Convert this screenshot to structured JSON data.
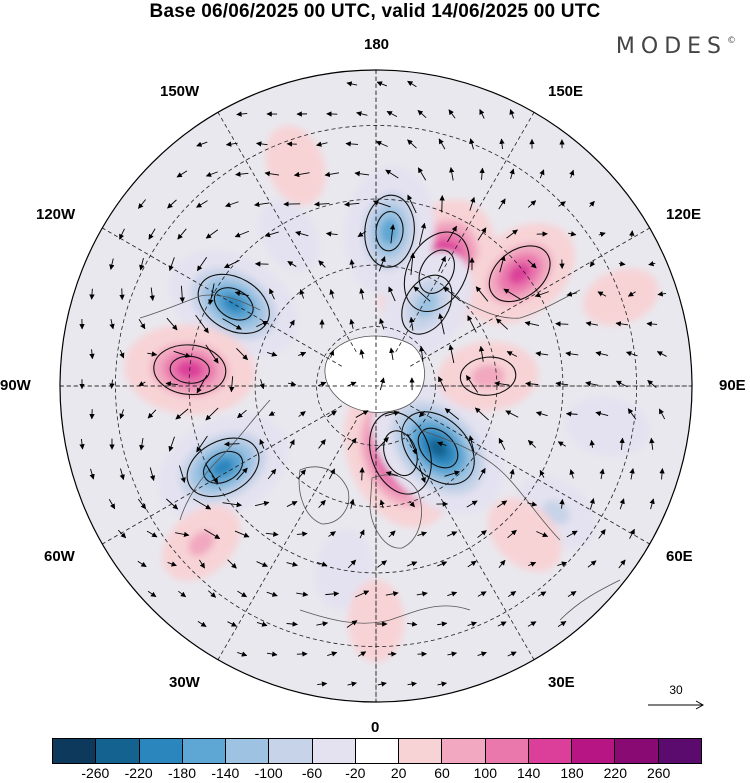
{
  "title": "Base 06/06/2025 00 UTC, valid 14/06/2025 00 UTC",
  "logo": {
    "text": "MODES",
    "mark": "©"
  },
  "longitude_labels": {
    "lon_0": "0",
    "lon_30e": "30E",
    "lon_60e": "60E",
    "lon_90e": "90E",
    "lon_120e": "120E",
    "lon_150e": "150E",
    "lon_180": "180",
    "lon_150w": "150W",
    "lon_120w": "120W",
    "lon_90w": "90W",
    "lon_60w": "60W",
    "lon_30w": "30W"
  },
  "reference_vector": {
    "label": "30"
  },
  "colorbar": {
    "colors": [
      "#0d3a5c",
      "#14628f",
      "#2b86bd",
      "#5ea6d3",
      "#9ec3e2",
      "#c7d3e8",
      "#e4e2f0",
      "#ffffff",
      "#f7d3d6",
      "#f1a8c0",
      "#ea78ad",
      "#db3f9a",
      "#b81584",
      "#8a0a73",
      "#5b0b6e"
    ],
    "tick_labels": [
      "-260",
      "-220",
      "-180",
      "-140",
      "-100",
      "-60",
      "-20",
      "20",
      "60",
      "100",
      "140",
      "180",
      "220",
      "260"
    ]
  },
  "anomaly_centers": [
    {
      "lon": 152,
      "lat": 58,
      "value": 240,
      "sign": "positive"
    },
    {
      "lon": 175,
      "lat": 52,
      "value": -180,
      "sign": "negative"
    },
    {
      "lon": 128,
      "lat": 46,
      "value": 160,
      "sign": "positive"
    },
    {
      "lon": 148,
      "lat": 66,
      "value": -140,
      "sign": "negative"
    },
    {
      "lon": -120,
      "lat": 50,
      "value": -200,
      "sign": "negative"
    },
    {
      "lon": -95,
      "lat": 45,
      "value": 180,
      "sign": "positive"
    },
    {
      "lon": -62,
      "lat": 48,
      "value": -200,
      "sign": "negative"
    },
    {
      "lon": 20,
      "lat": 72,
      "value": 240,
      "sign": "positive"
    },
    {
      "lon": 45,
      "lat": 68,
      "value": -240,
      "sign": "negative"
    },
    {
      "lon": 95,
      "lat": 62,
      "value": 100,
      "sign": "positive"
    },
    {
      "lon": -48,
      "lat": 35,
      "value": 70,
      "sign": "positive"
    },
    {
      "lon": 55,
      "lat": 38,
      "value": -70,
      "sign": "negative"
    },
    {
      "lon": 80,
      "lat": 35,
      "value": -60,
      "sign": "negative"
    },
    {
      "lon": 45,
      "lat": 40,
      "value": 60,
      "sign": "positive"
    },
    {
      "lon": -160,
      "lat": 35,
      "value": 50,
      "sign": "positive"
    },
    {
      "lon": -150,
      "lat": 48,
      "value": -40,
      "sign": "negative"
    },
    {
      "lon": 110,
      "lat": 30,
      "value": 40,
      "sign": "positive"
    },
    {
      "lon": -10,
      "lat": 45,
      "value": -50,
      "sign": "negative"
    },
    {
      "lon": 0,
      "lat": 35,
      "value": 50,
      "sign": "positive"
    }
  ]
}
